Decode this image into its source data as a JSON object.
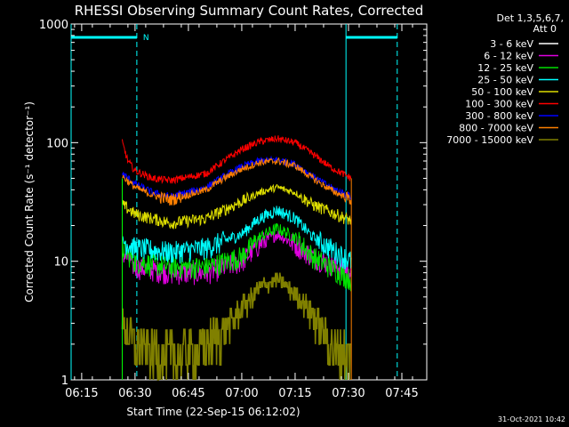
{
  "chart_data": {
    "type": "line",
    "title": "RHESSI Observing Summary Count Rates, Corrected",
    "xlabel": "Start Time (22-Sep-15 06:12:02)",
    "ylabel": "Corrected Count Rate (s⁻¹ detector⁻¹)",
    "y_scale": "log",
    "ylim": [
      1,
      1000
    ],
    "xlim": [
      "06:12:02",
      "07:52:00"
    ],
    "x_ticks": [
      "06:15",
      "06:30",
      "06:45",
      "07:00",
      "07:15",
      "07:30",
      "07:45"
    ],
    "x_tick_minutes": [
      15,
      30,
      45,
      60,
      75,
      90,
      105
    ],
    "y_ticks": [
      1,
      10,
      100,
      1000
    ],
    "y_tick_labels": [
      "1",
      "10",
      "100",
      "1000"
    ],
    "legend_header": [
      "Det 1,3,5,6,7,",
      "Att 0"
    ],
    "legend_placement": "right",
    "data_start_minute": 26.4,
    "data_end_minute": 90.8,
    "series": [
      {
        "name": "3 - 6 keV",
        "color": "#000000",
        "points": [
          [
            26.4,
            45
          ],
          [
            30,
            40
          ],
          [
            40,
            38
          ],
          [
            50,
            38
          ],
          [
            60,
            39
          ],
          [
            70,
            40
          ],
          [
            80,
            39
          ],
          [
            90.8,
            38
          ]
        ]
      },
      {
        "name": "6 - 12 keV",
        "color": "#e000e0",
        "points": [
          [
            26.4,
            12
          ],
          [
            30,
            9
          ],
          [
            40,
            8
          ],
          [
            50,
            8
          ],
          [
            60,
            10
          ],
          [
            65,
            14
          ],
          [
            70,
            17
          ],
          [
            75,
            14
          ],
          [
            80,
            11
          ],
          [
            90.8,
            8
          ]
        ]
      },
      {
        "name": "12 - 25 keV",
        "color": "#00e000",
        "points": [
          [
            26.4,
            13
          ],
          [
            30,
            10
          ],
          [
            40,
            9
          ],
          [
            50,
            9
          ],
          [
            60,
            11
          ],
          [
            65,
            16
          ],
          [
            70,
            19
          ],
          [
            75,
            16
          ],
          [
            80,
            11
          ],
          [
            90.8,
            7
          ]
        ]
      },
      {
        "name": "25 - 50 keV",
        "color": "#00ffff",
        "points": [
          [
            26.4,
            15
          ],
          [
            30,
            13
          ],
          [
            40,
            12
          ],
          [
            50,
            13
          ],
          [
            60,
            17
          ],
          [
            65,
            23
          ],
          [
            70,
            27
          ],
          [
            75,
            23
          ],
          [
            80,
            16
          ],
          [
            90.8,
            10
          ]
        ]
      },
      {
        "name": "50 - 100 keV",
        "color": "#dddd00",
        "points": [
          [
            26.4,
            30
          ],
          [
            30,
            25
          ],
          [
            40,
            21
          ],
          [
            50,
            23
          ],
          [
            60,
            32
          ],
          [
            65,
            38
          ],
          [
            70,
            42
          ],
          [
            75,
            38
          ],
          [
            80,
            30
          ],
          [
            90.8,
            22
          ]
        ]
      },
      {
        "name": "100 - 300 keV",
        "color": "#ff0000",
        "points": [
          [
            26.4,
            100
          ],
          [
            28,
            70
          ],
          [
            30,
            58
          ],
          [
            35,
            50
          ],
          [
            40,
            48
          ],
          [
            50,
            55
          ],
          [
            55,
            70
          ],
          [
            60,
            88
          ],
          [
            65,
            102
          ],
          [
            70,
            108
          ],
          [
            75,
            100
          ],
          [
            80,
            80
          ],
          [
            85,
            62
          ],
          [
            90.8,
            50
          ]
        ]
      },
      {
        "name": "300 - 800 keV",
        "color": "#0000ff",
        "points": [
          [
            26.4,
            55
          ],
          [
            30,
            45
          ],
          [
            35,
            38
          ],
          [
            40,
            35
          ],
          [
            50,
            42
          ],
          [
            55,
            52
          ],
          [
            60,
            63
          ],
          [
            65,
            70
          ],
          [
            70,
            72
          ],
          [
            75,
            66
          ],
          [
            80,
            52
          ],
          [
            85,
            42
          ],
          [
            90.8,
            35
          ]
        ]
      },
      {
        "name": "800 - 7000 keV",
        "color": "#ff8000",
        "points": [
          [
            26.4,
            52
          ],
          [
            30,
            42
          ],
          [
            35,
            36
          ],
          [
            40,
            33
          ],
          [
            50,
            40
          ],
          [
            55,
            50
          ],
          [
            60,
            60
          ],
          [
            65,
            68
          ],
          [
            70,
            70
          ],
          [
            75,
            64
          ],
          [
            80,
            50
          ],
          [
            85,
            40
          ],
          [
            90.8,
            33
          ]
        ]
      },
      {
        "name": "7000 - 15000 keV",
        "color": "#808000",
        "points": [
          [
            26.4,
            3
          ],
          [
            30,
            2
          ],
          [
            40,
            1.5
          ],
          [
            50,
            2
          ],
          [
            55,
            2.7
          ],
          [
            60,
            4
          ],
          [
            65,
            6
          ],
          [
            70,
            7
          ],
          [
            75,
            5.5
          ],
          [
            80,
            3.5
          ],
          [
            85,
            2
          ],
          [
            90.8,
            1.5
          ]
        ]
      }
    ],
    "saa_flag": {
      "label": "N",
      "color": "#00ffff",
      "intervals": [
        [
          12.03,
          30.5
        ],
        [
          89.3,
          103.7
        ]
      ]
    }
  },
  "timestamp": "31-Oct-2021 10:42"
}
